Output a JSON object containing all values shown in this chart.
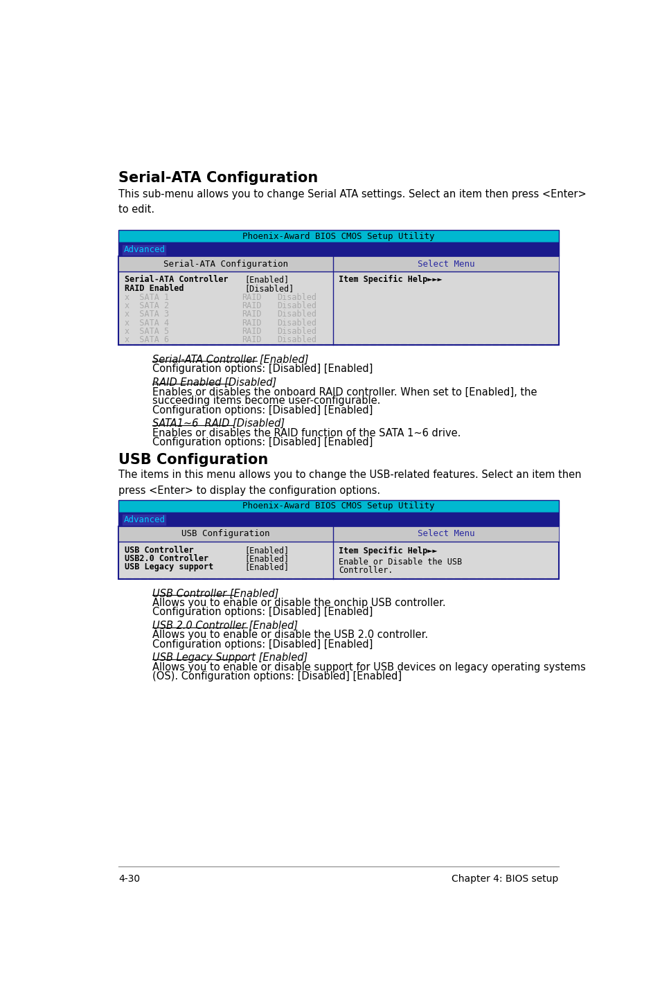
{
  "bg_color": "#ffffff",
  "section1_title": "Serial-ATA Configuration",
  "section1_desc": "This sub-menu allows you to change Serial ATA settings. Select an item then press <Enter>\nto edit.",
  "bios1_title": "Phoenix-Award BIOS CMOS Setup Utility",
  "bios1_tab": "Advanced",
  "bios1_left_header": "Serial-ATA Configuration",
  "bios1_right_header": "Select Menu",
  "bios1_help": "Item Specific Help►►►",
  "sata_items": [
    "SATA 1",
    "SATA 2",
    "SATA 3",
    "SATA 4",
    "SATA 5",
    "SATA 6"
  ],
  "desc1_items": [
    {
      "heading": "Serial-ATA Controller [Enabled]",
      "lines": [
        "Configuration options: [Disabled] [Enabled]"
      ]
    },
    {
      "heading": "RAID Enabled [Disabled]",
      "lines": [
        "Enables or disables the onboard RAID controller. When set to [Enabled], the",
        "succeeding items become user-configurable.",
        "Configuration options: [Disabled] [Enabled]"
      ]
    },
    {
      "heading": "SATA1~6  RAID [Disabled]",
      "lines": [
        "Enables or disables the RAID function of the SATA 1~6 drive.",
        "Configuration options: [Disabled] [Enabled]"
      ]
    }
  ],
  "section2_title": "USB Configuration",
  "section2_desc": "The items in this menu allows you to change the USB-related features. Select an item then\npress <Enter> to display the configuration options.",
  "bios2_title": "Phoenix-Award BIOS CMOS Setup Utility",
  "bios2_tab": "Advanced",
  "bios2_left_header": "USB Configuration",
  "bios2_right_header": "Select Menu",
  "bios2_rows": [
    [
      "USB Controller",
      "[Enabled]"
    ],
    [
      "USB2.0 Controller",
      "[Enabled]"
    ],
    [
      "USB Legacy support",
      "[Enabled]"
    ]
  ],
  "bios2_help_line1": "Item Specific Help►►",
  "bios2_help_line2": "Enable or Disable the USB",
  "bios2_help_line3": "Controller.",
  "desc2_items": [
    {
      "heading": "USB Controller [Enabled]",
      "lines": [
        "Allows you to enable or disable the onchip USB controller.",
        "Configuration options: [Disabled] [Enabled]"
      ]
    },
    {
      "heading": "USB 2.0 Controller [Enabled]",
      "lines": [
        "Allows you to enable or disable the USB 2.0 controller.",
        "Configuration options: [Disabled] [Enabled]"
      ]
    },
    {
      "heading": "USB Legacy Support [Enabled]",
      "lines": [
        "Allows you to enable or disable support for USB devices on legacy operating systems",
        "(OS). Configuration options: [Disabled] [Enabled]"
      ]
    }
  ],
  "footer_left": "4-30",
  "footer_right": "Chapter 4: BIOS setup",
  "color_cyan": "#00b8d0",
  "color_darkblue": "#1a1a8c",
  "color_blue_tab": "#3030a0",
  "color_lightgray": "#d8d8d8",
  "color_header_gray": "#c8c8c8",
  "color_white": "#ffffff",
  "color_black": "#000000",
  "color_blue_text": "#2828a0",
  "color_gray_text": "#aaaaaa",
  "color_tab_text": "#00ccff",
  "color_footer_line": "#888888"
}
